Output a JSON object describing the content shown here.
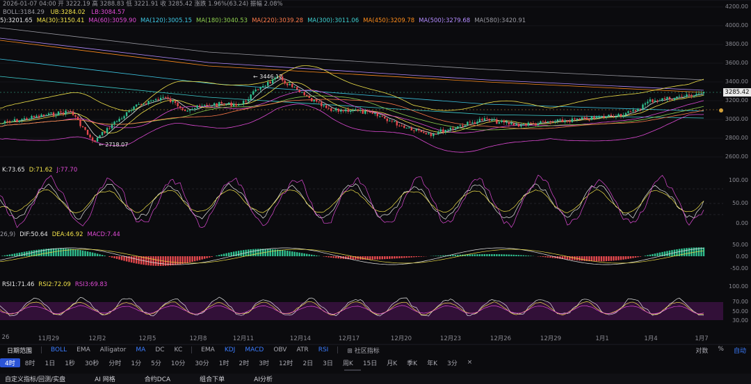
{
  "header": {
    "line1": "2026-01-07 04:00  开 3222.19  高 3288.83  低 3221.91  收 3285.42  涨跌 1.96%(63.24)  振幅 2.08%",
    "boll": {
      "label": "BOLL:3184.29",
      "ub": "UB:3284.02",
      "lb": "LB:3084.57"
    },
    "ma": [
      {
        "text": "5):3201.65",
        "color": "#e6e6e6"
      },
      {
        "text": "MA(30):3150.41",
        "color": "#f2e34a"
      },
      {
        "text": "MA(60):3059.90",
        "color": "#e04ad6"
      },
      {
        "text": "MA(120):3005.15",
        "color": "#3ec9e6"
      },
      {
        "text": "MA(180):3040.53",
        "color": "#8fd14f"
      },
      {
        "text": "MA(220):3039.28",
        "color": "#ff7a4a"
      },
      {
        "text": "MA(300):3011.06",
        "color": "#3ed0d0"
      },
      {
        "text": "MA(450):3209.78",
        "color": "#ff8c1a"
      },
      {
        "text": "MA(500):3279.68",
        "color": "#b48cff"
      },
      {
        "text": "MA(580):3420.91",
        "color": "#9a9aa2"
      }
    ]
  },
  "price_axis": [
    "4200.00",
    "4000.00",
    "3800.00",
    "3600.00",
    "3400.00",
    "3200.00",
    "3000.00",
    "2800.00",
    "2600.00"
  ],
  "current_price": "3285.42",
  "annotations": {
    "high": "3446.12",
    "low": "2718.07"
  },
  "kdj": {
    "k": "K:73.65",
    "d": "D:71.62",
    "j": "J:77.70",
    "axis": [
      "100.00",
      "50.00",
      "0.00"
    ]
  },
  "macd": {
    "prefix": "26,9)",
    "dif": "DIF:50.64",
    "dea": "DEA:46.92",
    "macd": "MACD:7.44",
    "axis": [
      "50.00",
      "0.00",
      "-50.00"
    ]
  },
  "rsi": {
    "rsi1": "RSI1:71.46",
    "rsi2": "RSI2:72.09",
    "rsi3": "RSI3:69.83",
    "axis": [
      "100.00",
      "70.00",
      "50.00",
      "30.00"
    ]
  },
  "dates": [
    "26",
    "11月29",
    "12月2",
    "12月5",
    "12月8",
    "12月11",
    "12月14",
    "12月17",
    "12月20",
    "12月23",
    "12月26",
    "12月29",
    "1月1",
    "1月4",
    "1月7"
  ],
  "indicator_bar": {
    "title": "日期范围",
    "main": [
      "BOLL",
      "EMA",
      "Alligator",
      "MA",
      "DC",
      "KC"
    ],
    "sub": [
      "EMA",
      "KDJ",
      "MACD",
      "OBV",
      "ATR",
      "RSI"
    ],
    "community": "社区指标",
    "right": [
      "对数",
      "%",
      "自动"
    ]
  },
  "intervals": [
    "4时",
    "8时",
    "1日",
    "1秒",
    "30秒",
    "分时",
    "1分",
    "5分",
    "10分",
    "30分",
    "1时",
    "2时",
    "3时",
    "12时",
    "2日",
    "3日",
    "周K",
    "15日",
    "月K",
    "季K",
    "年K",
    "3分",
    "×"
  ],
  "bottom_tabs": [
    "自定义指标/回测/实盘",
    "AI 网格",
    "合约DCA",
    "组合下单",
    "AI分析"
  ],
  "colors": {
    "up": "#2fbf8f",
    "down": "#e5484d",
    "accent": "#3b7cff"
  }
}
